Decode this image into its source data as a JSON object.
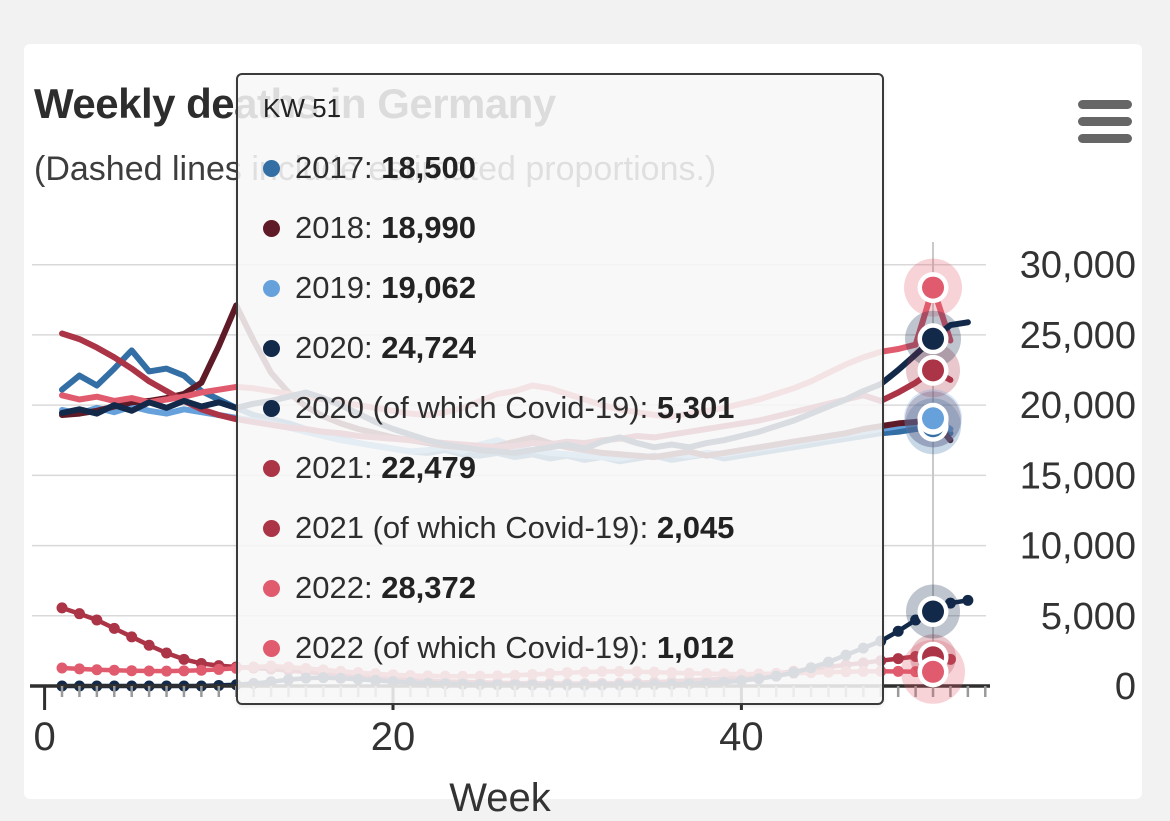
{
  "page": {
    "background": "#f2f2f2",
    "card_background": "#ffffff"
  },
  "header": {
    "title": "Weekly deaths in Germany",
    "subtitle": "(Dashed lines include estimated proportions.)"
  },
  "menu": {
    "icon": "hamburger-icon"
  },
  "tooltip": {
    "header": "KW 51",
    "rows": [
      {
        "label": "2017",
        "value": "18,500",
        "color": "#336fa5"
      },
      {
        "label": "2018",
        "value": "18,990",
        "color": "#5e1a26"
      },
      {
        "label": "2019",
        "value": "19,062",
        "color": "#66a1dc"
      },
      {
        "label": "2020",
        "value": "24,724",
        "color": "#12294a"
      },
      {
        "label": "2020 (of which Covid-19)",
        "value": "5,301",
        "color": "#12294a"
      },
      {
        "label": "2021",
        "value": "22,479",
        "color": "#ab3446"
      },
      {
        "label": "2021 (of which Covid-19)",
        "value": "2,045",
        "color": "#ab3446"
      },
      {
        "label": "2022",
        "value": "28,372",
        "color": "#e05b6d"
      },
      {
        "label": "2022 (of which Covid-19)",
        "value": "1,012",
        "color": "#e05b6d"
      }
    ]
  },
  "chart_data": {
    "type": "line",
    "title": "Weekly deaths in Germany",
    "subtitle": "(Dashed lines include estimated proportions.)",
    "xlabel": "Week",
    "ylabel": "",
    "xlim": [
      0,
      54
    ],
    "ylim": [
      0,
      30000
    ],
    "x_ticks": [
      0,
      20,
      40
    ],
    "x_tick_labels": [
      "0",
      "20",
      "40"
    ],
    "y_ticks": [
      0,
      5000,
      10000,
      15000,
      20000,
      25000,
      30000
    ],
    "y_tick_labels": [
      "0",
      "5,000",
      "10,000",
      "15,000",
      "20,000",
      "25,000",
      "30,000"
    ],
    "grid": true,
    "legend_position": "none",
    "hover_week": 51,
    "crosshair_color": "#c9c9c9",
    "gridline_color": "#d9d9d9",
    "axis_color": "#2f2f2f",
    "minor_tick_color": "#9a9a9a",
    "series": [
      {
        "id": "s2017",
        "name": "2017",
        "color": "#336fa5",
        "covid_markers": false,
        "halo_r": 28,
        "start_week": 1,
        "values": [
          21100,
          22100,
          21400,
          22600,
          23900,
          22400,
          22600,
          22100,
          21000,
          20400,
          19800,
          19300,
          19000,
          18700,
          18300,
          17900,
          17600,
          17300,
          17100,
          16900,
          16700,
          16600,
          16800,
          16500,
          16400,
          16600,
          16300,
          16500,
          16200,
          16400,
          16100,
          16300,
          16000,
          16200,
          16400,
          16100,
          16300,
          16500,
          16200,
          16400,
          16600,
          16800,
          17000,
          17200,
          17400,
          17600,
          17800,
          18000,
          18100,
          18300,
          18500,
          18000
        ]
      },
      {
        "id": "s2018",
        "name": "2018",
        "color": "#5e1a26",
        "covid_markers": false,
        "halo_r": 28,
        "start_week": 1,
        "values": [
          19300,
          19400,
          19600,
          19900,
          20200,
          20300,
          20500,
          20800,
          21600,
          24200,
          27100,
          24600,
          22300,
          20900,
          19900,
          19200,
          18700,
          18300,
          18000,
          17700,
          17500,
          17300,
          17100,
          17000,
          16900,
          17100,
          17400,
          17700,
          17300,
          17000,
          16800,
          16600,
          16500,
          16400,
          16300,
          16500,
          16700,
          16400,
          16600,
          16800,
          17000,
          17200,
          17400,
          17600,
          17800,
          18000,
          18300,
          18500,
          18700,
          18800,
          18990,
          17500
        ]
      },
      {
        "id": "s2019",
        "name": "2019",
        "color": "#66a1dc",
        "covid_markers": false,
        "halo_r": 29,
        "start_week": 1,
        "values": [
          19650,
          19400,
          19800,
          19500,
          19900,
          19600,
          19400,
          19700,
          19500,
          19300,
          19100,
          18900,
          18700,
          18400,
          18100,
          17800,
          17500,
          17300,
          17100,
          16900,
          16700,
          16800,
          17000,
          16700,
          17200,
          17500,
          17000,
          16800,
          16600,
          16500,
          16400,
          16300,
          16200,
          16400,
          16300,
          16500,
          16400,
          16600,
          16500,
          16700,
          16900,
          17100,
          17300,
          17500,
          17700,
          17900,
          18100,
          18300,
          18500,
          18700,
          19062,
          18300
        ]
      },
      {
        "id": "s2020",
        "name": "2020",
        "color": "#12294a",
        "covid_markers": false,
        "halo_r": 28,
        "start_week": 1,
        "values": [
          19450,
          19700,
          19400,
          20000,
          19600,
          20200,
          19800,
          20300,
          19900,
          20200,
          19800,
          20100,
          20300,
          20600,
          20900,
          20500,
          20000,
          19400,
          18800,
          18300,
          17900,
          17500,
          17200,
          17000,
          16800,
          16700,
          16600,
          16800,
          17000,
          17200,
          16900,
          17400,
          17700,
          17300,
          17000,
          17200,
          17000,
          17300,
          17500,
          17800,
          18100,
          18500,
          18900,
          19400,
          19900,
          20400,
          21000,
          21500,
          22500,
          23600,
          24724,
          25700,
          25900
        ]
      },
      {
        "id": "s2020c",
        "name": "2020 (of which Covid-19)",
        "color": "#12294a",
        "covid_markers": true,
        "halo_r": 27,
        "start_week": 1,
        "values": [
          0,
          0,
          0,
          0,
          0,
          0,
          0,
          0,
          0,
          40,
          90,
          180,
          300,
          450,
          560,
          600,
          550,
          480,
          400,
          320,
          250,
          200,
          160,
          130,
          110,
          90,
          80,
          70,
          60,
          60,
          60,
          70,
          80,
          90,
          100,
          120,
          150,
          200,
          280,
          380,
          520,
          700,
          950,
          1300,
          1700,
          2200,
          2700,
          3200,
          3900,
          4700,
          5301,
          5900,
          6100
        ]
      },
      {
        "id": "s2021",
        "name": "2021",
        "color": "#ab3446",
        "covid_markers": false,
        "halo_r": 27,
        "start_week": 1,
        "values": [
          25100,
          24700,
          24100,
          23400,
          22600,
          21700,
          21000,
          20300,
          19700,
          19300,
          19000,
          18800,
          18600,
          18400,
          18300,
          18100,
          18000,
          17800,
          17700,
          17600,
          17500,
          17400,
          17300,
          17200,
          17100,
          17000,
          17100,
          17300,
          17200,
          17400,
          17300,
          17500,
          17600,
          17800,
          17700,
          17900,
          18100,
          18300,
          18500,
          18700,
          18900,
          19200,
          19500,
          19800,
          20100,
          20400,
          20700,
          20300,
          20900,
          21600,
          22479,
          21800
        ]
      },
      {
        "id": "s2021c",
        "name": "2021 (of which Covid-19)",
        "color": "#ab3446",
        "covid_markers": true,
        "halo_r": 23,
        "start_week": 1,
        "values": [
          5560,
          5150,
          4700,
          4100,
          3500,
          2900,
          2350,
          1900,
          1600,
          1450,
          1350,
          1280,
          1200,
          1100,
          1000,
          900,
          800,
          700,
          600,
          500,
          430,
          380,
          330,
          290,
          260,
          230,
          210,
          200,
          190,
          180,
          180,
          190,
          210,
          240,
          280,
          330,
          390,
          460,
          540,
          640,
          760,
          900,
          1050,
          1200,
          1350,
          1500,
          1650,
          1800,
          1950,
          2100,
          2045,
          1900
        ]
      },
      {
        "id": "s2022",
        "name": "2022",
        "color": "#e05b6d",
        "covid_markers": false,
        "halo_r": 29,
        "start_week": 1,
        "values": [
          20700,
          20400,
          20600,
          20300,
          20500,
          20200,
          20400,
          20600,
          20900,
          21100,
          21300,
          21200,
          21000,
          20800,
          20600,
          20400,
          20200,
          20000,
          19800,
          19600,
          19400,
          19300,
          19500,
          19800,
          20300,
          20800,
          21000,
          21400,
          21200,
          20800,
          20400,
          20000,
          19700,
          19500,
          19300,
          19200,
          19400,
          19600,
          19800,
          20100,
          20400,
          20800,
          21200,
          21700,
          22300,
          22900,
          23400,
          23800,
          24000,
          24300,
          28372,
          24600
        ]
      },
      {
        "id": "s2022c",
        "name": "2022 (of which Covid-19)",
        "color": "#e05b6d",
        "covid_markers": true,
        "halo_r": 32,
        "start_week": 1,
        "values": [
          1280,
          1220,
          1160,
          1120,
          1090,
          1070,
          1060,
          1080,
          1120,
          1180,
          1260,
          1350,
          1420,
          1350,
          1250,
          1150,
          1050,
          950,
          870,
          800,
          750,
          720,
          700,
          690,
          700,
          720,
          760,
          820,
          890,
          950,
          1000,
          1030,
          1040,
          1020,
          990,
          950,
          910,
          880,
          860,
          850,
          860,
          880,
          910,
          950,
          990,
          1020,
          1040,
          1050,
          1040,
          1020,
          1012
        ]
      }
    ]
  }
}
